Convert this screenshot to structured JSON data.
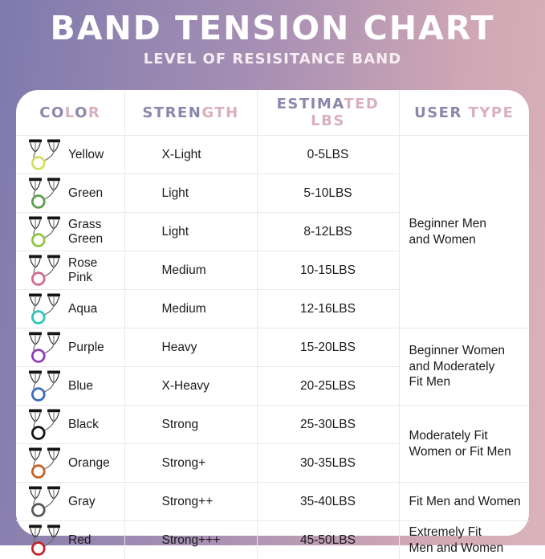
{
  "title": "BAND TENSION CHART",
  "subtitle": "LEVEL OF RESISITANCE BAND",
  "theme": {
    "bg_gradient_left": "#7e7aad",
    "bg_gradient_right": "#dab3bb",
    "card_bg": "#ffffff",
    "header_letter_purple": "#8b87ac",
    "header_letter_pink": "#d9afbb",
    "grid_line": "#e9e7ef",
    "body_text": "#1a1a1a",
    "title_text": "#ffffff"
  },
  "table": {
    "headers": [
      {
        "id": "color",
        "segments": [
          {
            "text": "CO",
            "color": "purple"
          },
          {
            "text": "L",
            "color": "pink"
          },
          {
            "text": "O",
            "color": "purple"
          },
          {
            "text": "R",
            "color": "pink"
          }
        ]
      },
      {
        "id": "strength",
        "segments": [
          {
            "text": "STREN",
            "color": "purple"
          },
          {
            "text": "GTH",
            "color": "pink"
          }
        ]
      },
      {
        "id": "estimated-lbs",
        "segments": [
          {
            "text": "ESTIMA",
            "color": "purple"
          },
          {
            "text": "TED LBS",
            "color": "pink"
          }
        ]
      },
      {
        "id": "user-type",
        "segments": [
          {
            "text": "USER ",
            "color": "purple"
          },
          {
            "text": "TYPE",
            "color": "pink"
          }
        ]
      }
    ],
    "rows": [
      {
        "color_name": "Yellow",
        "band_hex": "#d6de5f",
        "strength": "X-Light",
        "estimated_lbs": "0-5LBS"
      },
      {
        "color_name": "Green",
        "band_hex": "#5f9e4f",
        "strength": "Light",
        "estimated_lbs": "5-10LBS"
      },
      {
        "color_name": "Grass Green",
        "band_hex": "#8cc63f",
        "strength": "Light",
        "estimated_lbs": "8-12LBS"
      },
      {
        "color_name": "Rose Pink",
        "band_hex": "#d4688f",
        "strength": "Medium",
        "estimated_lbs": "10-15LBS"
      },
      {
        "color_name": "Aqua",
        "band_hex": "#2ec4bc",
        "strength": "Medium",
        "estimated_lbs": "12-16LBS"
      },
      {
        "color_name": "Purple",
        "band_hex": "#8f3fba",
        "strength": "Heavy",
        "estimated_lbs": "15-20LBS"
      },
      {
        "color_name": "Blue",
        "band_hex": "#3a6cc0",
        "strength": "X-Heavy",
        "estimated_lbs": "20-25LBS"
      },
      {
        "color_name": "Black",
        "band_hex": "#141414",
        "strength": "Strong",
        "estimated_lbs": "25-30LBS"
      },
      {
        "color_name": "Orange",
        "band_hex": "#c86026",
        "strength": "Strong+",
        "estimated_lbs": "30-35LBS"
      },
      {
        "color_name": "Gray",
        "band_hex": "#58585c",
        "strength": "Strong++",
        "estimated_lbs": "35-40LBS"
      },
      {
        "color_name": "Red",
        "band_hex": "#c1252b",
        "strength": "Strong+++",
        "estimated_lbs": "45-50LBS"
      }
    ],
    "user_type_groups": [
      {
        "label": "Beginner Men\nand Women",
        "rowspan": 5
      },
      {
        "label": "Beginner Women\nand Moderately\nFit Men",
        "rowspan": 2
      },
      {
        "label": "Moderately Fit\nWomen or Fit Men",
        "rowspan": 2
      },
      {
        "label": "Fit Men and Women",
        "rowspan": 1
      },
      {
        "label": "Extremely Fit\nMen and Women",
        "rowspan": 1
      }
    ]
  },
  "chart_data": {
    "type": "table",
    "title": "BAND TENSION CHART",
    "subtitle": "LEVEL OF RESISITANCE BAND",
    "columns": [
      "COLOR",
      "STRENGTH",
      "ESTIMATED LBS",
      "USER TYPE"
    ],
    "rows": [
      [
        "Yellow",
        "X-Light",
        "0-5LBS",
        "Beginner Men and Women"
      ],
      [
        "Green",
        "Light",
        "5-10LBS",
        "Beginner Men and Women"
      ],
      [
        "Grass Green",
        "Light",
        "8-12LBS",
        "Beginner Men and Women"
      ],
      [
        "Rose Pink",
        "Medium",
        "10-15LBS",
        "Beginner Men and Women"
      ],
      [
        "Aqua",
        "Medium",
        "12-16LBS",
        "Beginner Men and Women"
      ],
      [
        "Purple",
        "Heavy",
        "15-20LBS",
        "Beginner Women and Moderately Fit Men"
      ],
      [
        "Blue",
        "X-Heavy",
        "20-25LBS",
        "Beginner Women and Moderately Fit Men"
      ],
      [
        "Black",
        "Strong",
        "25-30LBS",
        "Moderately Fit Women or Fit Men"
      ],
      [
        "Orange",
        "Strong+",
        "30-35LBS",
        "Moderately Fit Women or Fit Men"
      ],
      [
        "Gray",
        "Strong++",
        "35-40LBS",
        "Fit Men and Women"
      ],
      [
        "Red",
        "Strong+++",
        "45-50LBS",
        "Extremely Fit Men and Women"
      ]
    ]
  }
}
